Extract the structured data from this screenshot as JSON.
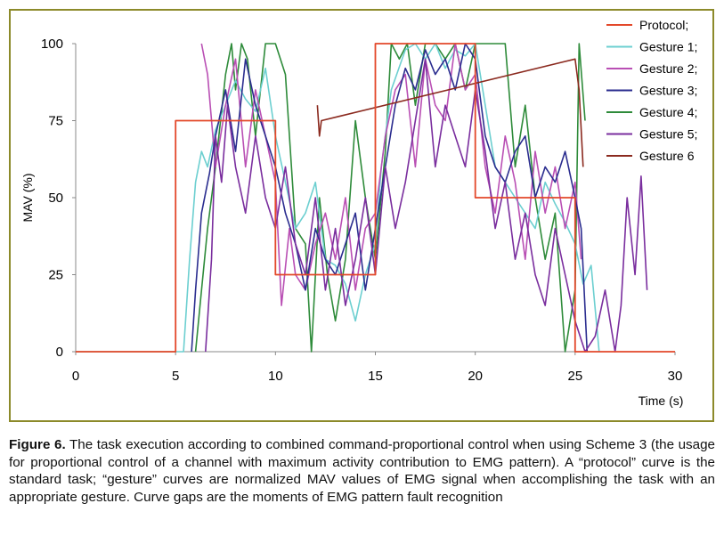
{
  "figure": {
    "caption_label": "Figure 6.",
    "caption_text": " The task execution according to combined command-proportional control when using Scheme 3 (the usage for proportional control of a channel with maximum activity contribution to EMG pattern). A “protocol” curve is the standard task; “gesture” curves are normalized MAV values of EMG signal when accomplishing the task with an appropriate gesture. Curve gaps are the moments of EMG pattern fault recognition"
  },
  "colors": {
    "frame": "#8c8a2a",
    "axis": "#888888"
  },
  "chart_data": {
    "type": "line",
    "title": "",
    "xlabel": "Time (s)",
    "ylabel": "MAV (%)",
    "xlim": [
      0,
      30
    ],
    "ylim": [
      0,
      100
    ],
    "xticks": [
      0,
      5,
      10,
      15,
      20,
      25,
      30
    ],
    "yticks": [
      0,
      25,
      50,
      75,
      100
    ],
    "grid": false,
    "legend_position": "top-right",
    "series": [
      {
        "name": "Protocol;",
        "color": "#e3482a",
        "x": [
          0,
          5,
          5,
          10,
          10,
          15,
          15,
          20,
          20,
          25,
          25,
          30
        ],
        "y": [
          0,
          0,
          75,
          75,
          25,
          25,
          100,
          100,
          50,
          50,
          0,
          0
        ]
      },
      {
        "name": "Gesture 1;",
        "color": "#6ccfd0",
        "x": [
          0,
          5.4,
          5.7,
          6.0,
          6.3,
          6.6,
          7.0,
          7.5,
          8.0,
          8.5,
          9.0,
          9.5,
          10.0,
          10.5,
          11.0,
          11.5,
          12.0,
          12.5,
          13.0,
          13.5,
          14.0,
          14.5,
          15.0,
          15.3,
          15.8,
          16.5,
          17.0,
          17.5,
          18.0,
          18.5,
          19.0,
          19.5,
          20.0,
          20.5,
          21.0,
          21.5,
          22.0,
          22.5,
          23.0,
          23.5,
          24.0,
          24.5,
          25.0,
          25.4,
          25.8,
          26.2
        ],
        "y": [
          0,
          0,
          30,
          55,
          65,
          60,
          72,
          80,
          88,
          82,
          78,
          92,
          70,
          55,
          40,
          45,
          55,
          30,
          28,
          22,
          10,
          25,
          35,
          60,
          85,
          98,
          100,
          95,
          100,
          92,
          98,
          96,
          100,
          80,
          60,
          55,
          50,
          45,
          40,
          55,
          48,
          42,
          35,
          22,
          28,
          0
        ]
      },
      {
        "name": "Gesture 2;",
        "color": "#b94fb4",
        "x": [
          6.3,
          6.6,
          7.0,
          7.5,
          8.0,
          8.5,
          9.0,
          9.5,
          10.0,
          10.3,
          10.7,
          11.0,
          11.5,
          12.0,
          12.5,
          13.0,
          13.5,
          14.0,
          14.5,
          15.0,
          15.5,
          16.0,
          16.5,
          17.0,
          17.5,
          18.0,
          18.5,
          19.0,
          19.5,
          20.0,
          20.5,
          21.0,
          21.5,
          22.0,
          22.5,
          23.0,
          23.5,
          24.0,
          24.5,
          25.0,
          25.3
        ],
        "y": [
          100,
          90,
          60,
          80,
          95,
          60,
          85,
          70,
          55,
          15,
          40,
          25,
          20,
          35,
          45,
          30,
          50,
          20,
          40,
          45,
          70,
          85,
          90,
          60,
          95,
          80,
          75,
          100,
          85,
          90,
          60,
          45,
          70,
          55,
          30,
          65,
          45,
          60,
          40,
          55,
          30
        ]
      },
      {
        "name": "Gesture 3;",
        "color": "#2b2d8f",
        "x": [
          5.8,
          6.0,
          6.3,
          6.7,
          7.0,
          7.5,
          8.0,
          8.5,
          9.0,
          9.5,
          10.0,
          10.5,
          11.0,
          11.5,
          12.0,
          12.5,
          13.0,
          13.5,
          14.0,
          14.5,
          15.0,
          15.5,
          16.0,
          16.5,
          17.0,
          17.5,
          18.0,
          18.5,
          19.0,
          19.5,
          20.0,
          20.5,
          21.0,
          21.5,
          22.0,
          22.5,
          23.0,
          23.5,
          24.0,
          24.5,
          25.0,
          25.3,
          25.6
        ],
        "y": [
          0,
          20,
          45,
          58,
          70,
          85,
          65,
          95,
          80,
          70,
          60,
          45,
          35,
          20,
          40,
          30,
          25,
          35,
          45,
          20,
          40,
          60,
          80,
          92,
          85,
          98,
          90,
          95,
          85,
          100,
          95,
          70,
          60,
          55,
          65,
          70,
          50,
          60,
          55,
          65,
          50,
          40,
          0
        ]
      },
      {
        "name": "Gesture 4;",
        "color": "#2e8b3a",
        "x": [
          6.0,
          6.3,
          6.6,
          7.0,
          7.5,
          7.8,
          8.0,
          8.3,
          8.6,
          9.0,
          9.5,
          10.0,
          10.5,
          11.0,
          11.5,
          11.8,
          12.2,
          12.6,
          13.0,
          13.5,
          14.0,
          14.5,
          15.0,
          15.5,
          15.8,
          16.2,
          16.6,
          17.0,
          17.5,
          18.0,
          18.5,
          19.0,
          19.5,
          20.0,
          20.5,
          21.0,
          21.5,
          22.0,
          22.5,
          23.0,
          23.5,
          24.0,
          24.5,
          25.0,
          25.2,
          25.5
        ],
        "y": [
          0,
          20,
          40,
          60,
          90,
          100,
          85,
          100,
          95,
          70,
          100,
          100,
          90,
          40,
          35,
          0,
          50,
          25,
          10,
          30,
          75,
          50,
          30,
          65,
          100,
          95,
          100,
          80,
          100,
          100,
          95,
          100,
          85,
          100,
          100,
          100,
          100,
          60,
          80,
          50,
          30,
          45,
          0,
          20,
          100,
          75
        ]
      },
      {
        "name": "Gesture 5;",
        "color": "#7a2e9e",
        "x": [
          6.5,
          6.8,
          7.0,
          7.3,
          7.6,
          8.0,
          8.5,
          9.0,
          9.5,
          10.0,
          10.5,
          11.0,
          11.5,
          12.0,
          12.5,
          13.0,
          13.5,
          14.0,
          14.5,
          15.0,
          15.5,
          16.0,
          16.5,
          17.0,
          17.5,
          18.0,
          18.5,
          19.0,
          19.5,
          20.0,
          20.5,
          21.0,
          21.5,
          22.0,
          22.5,
          23.0,
          23.5,
          24.0,
          24.5,
          25.0,
          25.5,
          26.0,
          26.5,
          27.0,
          27.3,
          27.6,
          28.0,
          28.3,
          28.6
        ],
        "y": [
          0,
          30,
          70,
          55,
          80,
          60,
          45,
          70,
          50,
          40,
          60,
          35,
          25,
          50,
          20,
          40,
          15,
          30,
          50,
          25,
          60,
          40,
          55,
          75,
          95,
          60,
          80,
          70,
          60,
          85,
          65,
          40,
          55,
          30,
          45,
          25,
          15,
          40,
          25,
          10,
          0,
          5,
          20,
          0,
          15,
          50,
          25,
          57,
          20
        ]
      },
      {
        "name": "Gesture 6",
        "color": "#8b2a1f",
        "x": [
          12.1,
          12.2,
          12.3,
          25.0,
          25.2,
          25.4
        ],
        "y": [
          80,
          70,
          75,
          95,
          85,
          60
        ]
      }
    ]
  }
}
